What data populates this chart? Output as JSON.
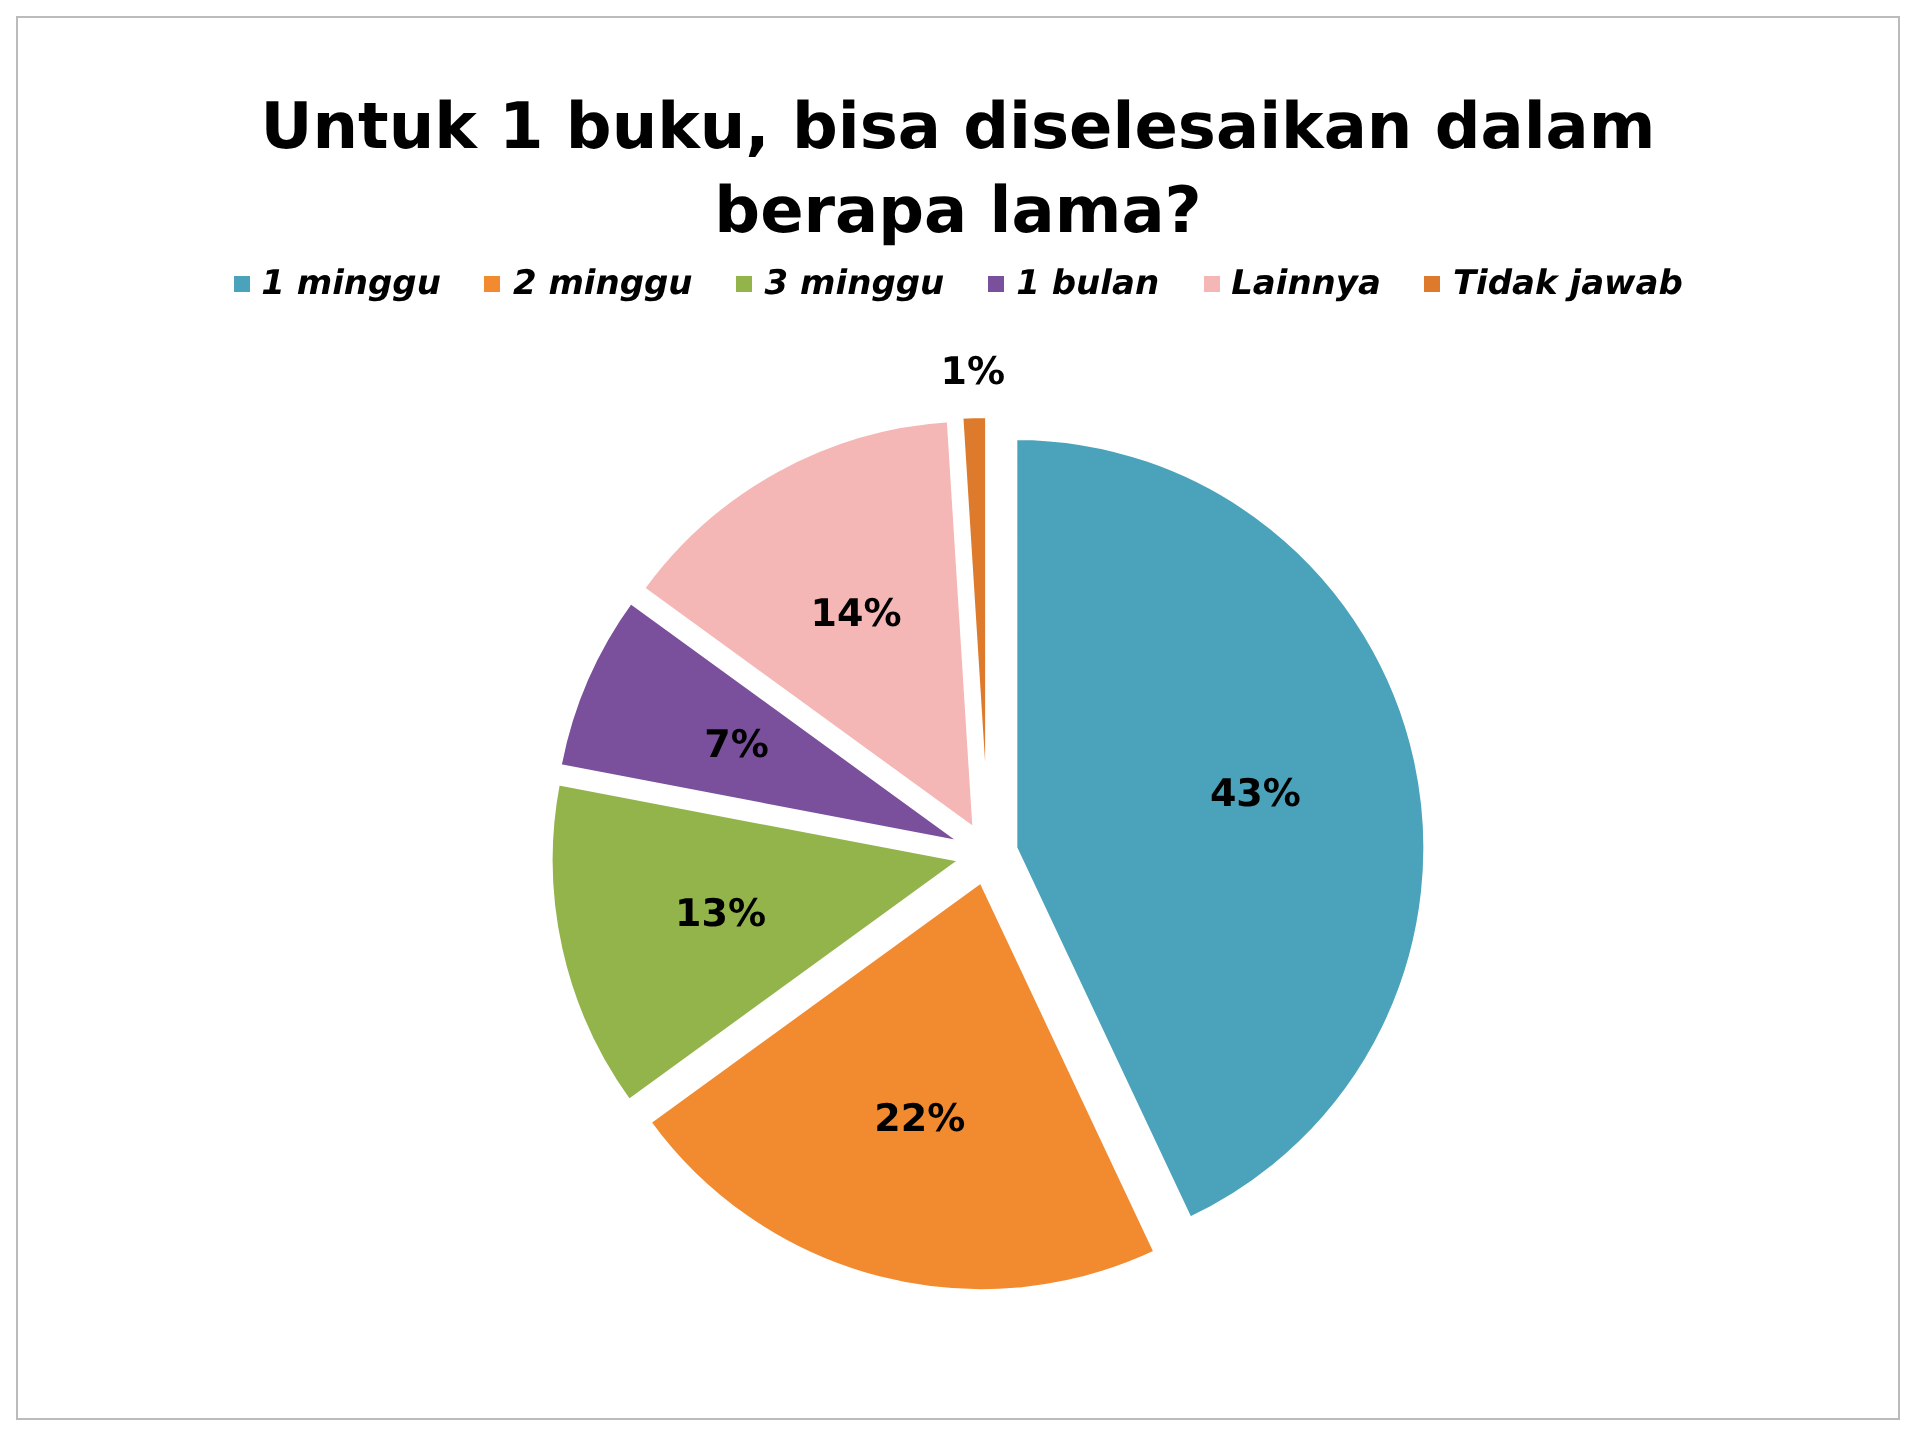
{
  "chart_data": {
    "type": "pie",
    "title": "Untuk 1 buku, bisa diselesaikan dalam berapa lama?",
    "categories": [
      "1 minggu",
      "2 minggu",
      "3 minggu",
      "1 bulan",
      "Lainnya",
      "Tidak jawab"
    ],
    "values": [
      43,
      22,
      13,
      7,
      14,
      1
    ],
    "value_labels": [
      "43%",
      "22%",
      "13%",
      "7%",
      "14%",
      "1%"
    ],
    "colors": [
      "#4aa3bb",
      "#f28a30",
      "#93b44b",
      "#7a4f9c",
      "#f5b7b5",
      "#dd7a2c"
    ],
    "legend": "top"
  }
}
